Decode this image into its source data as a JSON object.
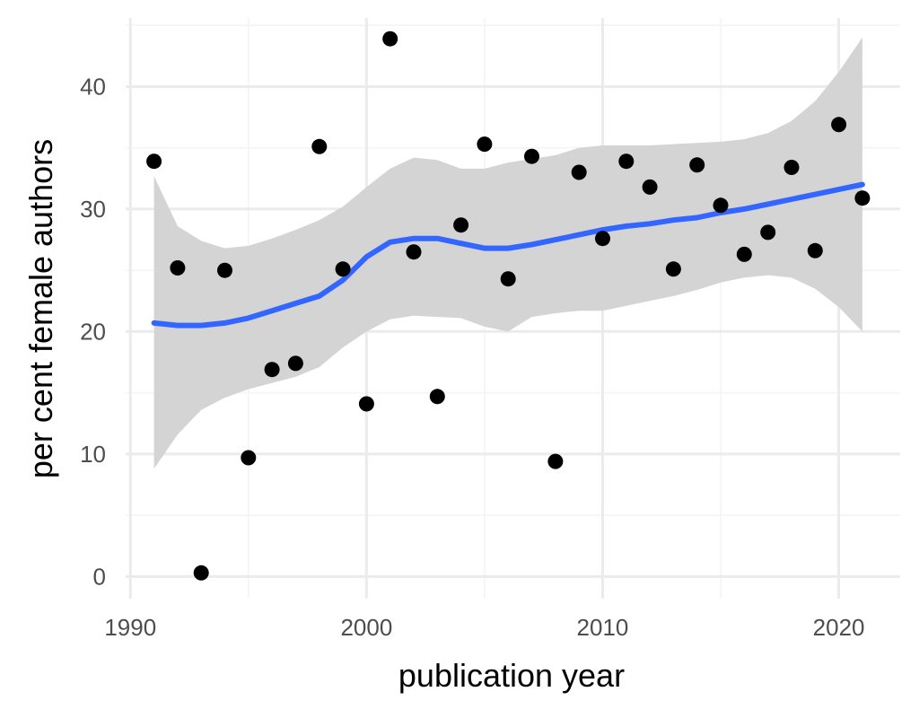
{
  "chart_data": {
    "type": "scatter",
    "title": "",
    "xlabel": "publication year",
    "ylabel": "per cent female authors",
    "xlim": [
      1989.8,
      2022.6
    ],
    "ylim": [
      -1.8,
      45.6
    ],
    "x_ticks": [
      1990,
      2000,
      2010,
      2020
    ],
    "x_tick_labels": [
      "1990",
      "2000",
      "2010",
      "2020"
    ],
    "y_ticks": [
      0,
      10,
      20,
      30,
      40
    ],
    "y_tick_labels": [
      "0",
      "10",
      "20",
      "30",
      "40"
    ],
    "grid": true,
    "legend": "none",
    "colors": {
      "points": "#000000",
      "smooth_line": "#3366FF",
      "confidence_band": "#d4d4d4",
      "grid_major": "#ebebeb",
      "grid_minor": "#f4f4f4"
    },
    "points": {
      "x": [
        1991,
        1992,
        1993,
        1994,
        1995,
        1996,
        1997,
        1998,
        1999,
        2000,
        2001,
        2002,
        2003,
        2004,
        2005,
        2006,
        2007,
        2008,
        2009,
        2010,
        2011,
        2012,
        2013,
        2014,
        2015,
        2016,
        2017,
        2018,
        2019,
        2020,
        2021
      ],
      "y": [
        33.9,
        25.2,
        0.3,
        25.0,
        9.7,
        16.9,
        17.4,
        35.1,
        25.1,
        14.1,
        43.9,
        26.5,
        14.7,
        28.7,
        35.3,
        24.3,
        34.3,
        9.4,
        33.0,
        27.6,
        33.9,
        31.8,
        25.1,
        33.6,
        30.3,
        26.3,
        28.1,
        33.4,
        26.6,
        36.9,
        30.9
      ]
    },
    "smooth": {
      "x": [
        1991,
        1992,
        1993,
        1994,
        1995,
        1996,
        1997,
        1998,
        1999,
        2000,
        2001,
        2002,
        2003,
        2004,
        2005,
        2006,
        2007,
        2008,
        2009,
        2010,
        2011,
        2012,
        2013,
        2014,
        2015,
        2016,
        2017,
        2018,
        2019,
        2020,
        2021
      ],
      "y": [
        20.7,
        20.5,
        20.5,
        20.7,
        21.1,
        21.7,
        22.3,
        22.9,
        24.2,
        26.1,
        27.3,
        27.6,
        27.6,
        27.2,
        26.8,
        26.8,
        27.1,
        27.5,
        27.9,
        28.3,
        28.6,
        28.8,
        29.1,
        29.3,
        29.7,
        30.0,
        30.4,
        30.8,
        31.2,
        31.6,
        32.0
      ],
      "lower": [
        8.8,
        11.6,
        13.6,
        14.6,
        15.3,
        15.8,
        16.3,
        17.1,
        18.7,
        20.0,
        21.0,
        21.3,
        21.2,
        21.1,
        20.4,
        20.0,
        21.2,
        21.5,
        21.7,
        21.7,
        22.1,
        22.5,
        22.9,
        23.4,
        24.0,
        24.4,
        24.6,
        24.4,
        23.5,
        22.0,
        20.0
      ],
      "upper": [
        32.7,
        28.6,
        27.4,
        26.8,
        27.0,
        27.6,
        28.3,
        29.1,
        30.2,
        31.8,
        33.3,
        34.2,
        34.0,
        33.3,
        33.3,
        33.8,
        34.1,
        34.4,
        35.0,
        35.2,
        35.2,
        35.2,
        35.3,
        35.4,
        35.5,
        35.7,
        36.2,
        37.2,
        38.8,
        41.2,
        44.0
      ]
    }
  }
}
